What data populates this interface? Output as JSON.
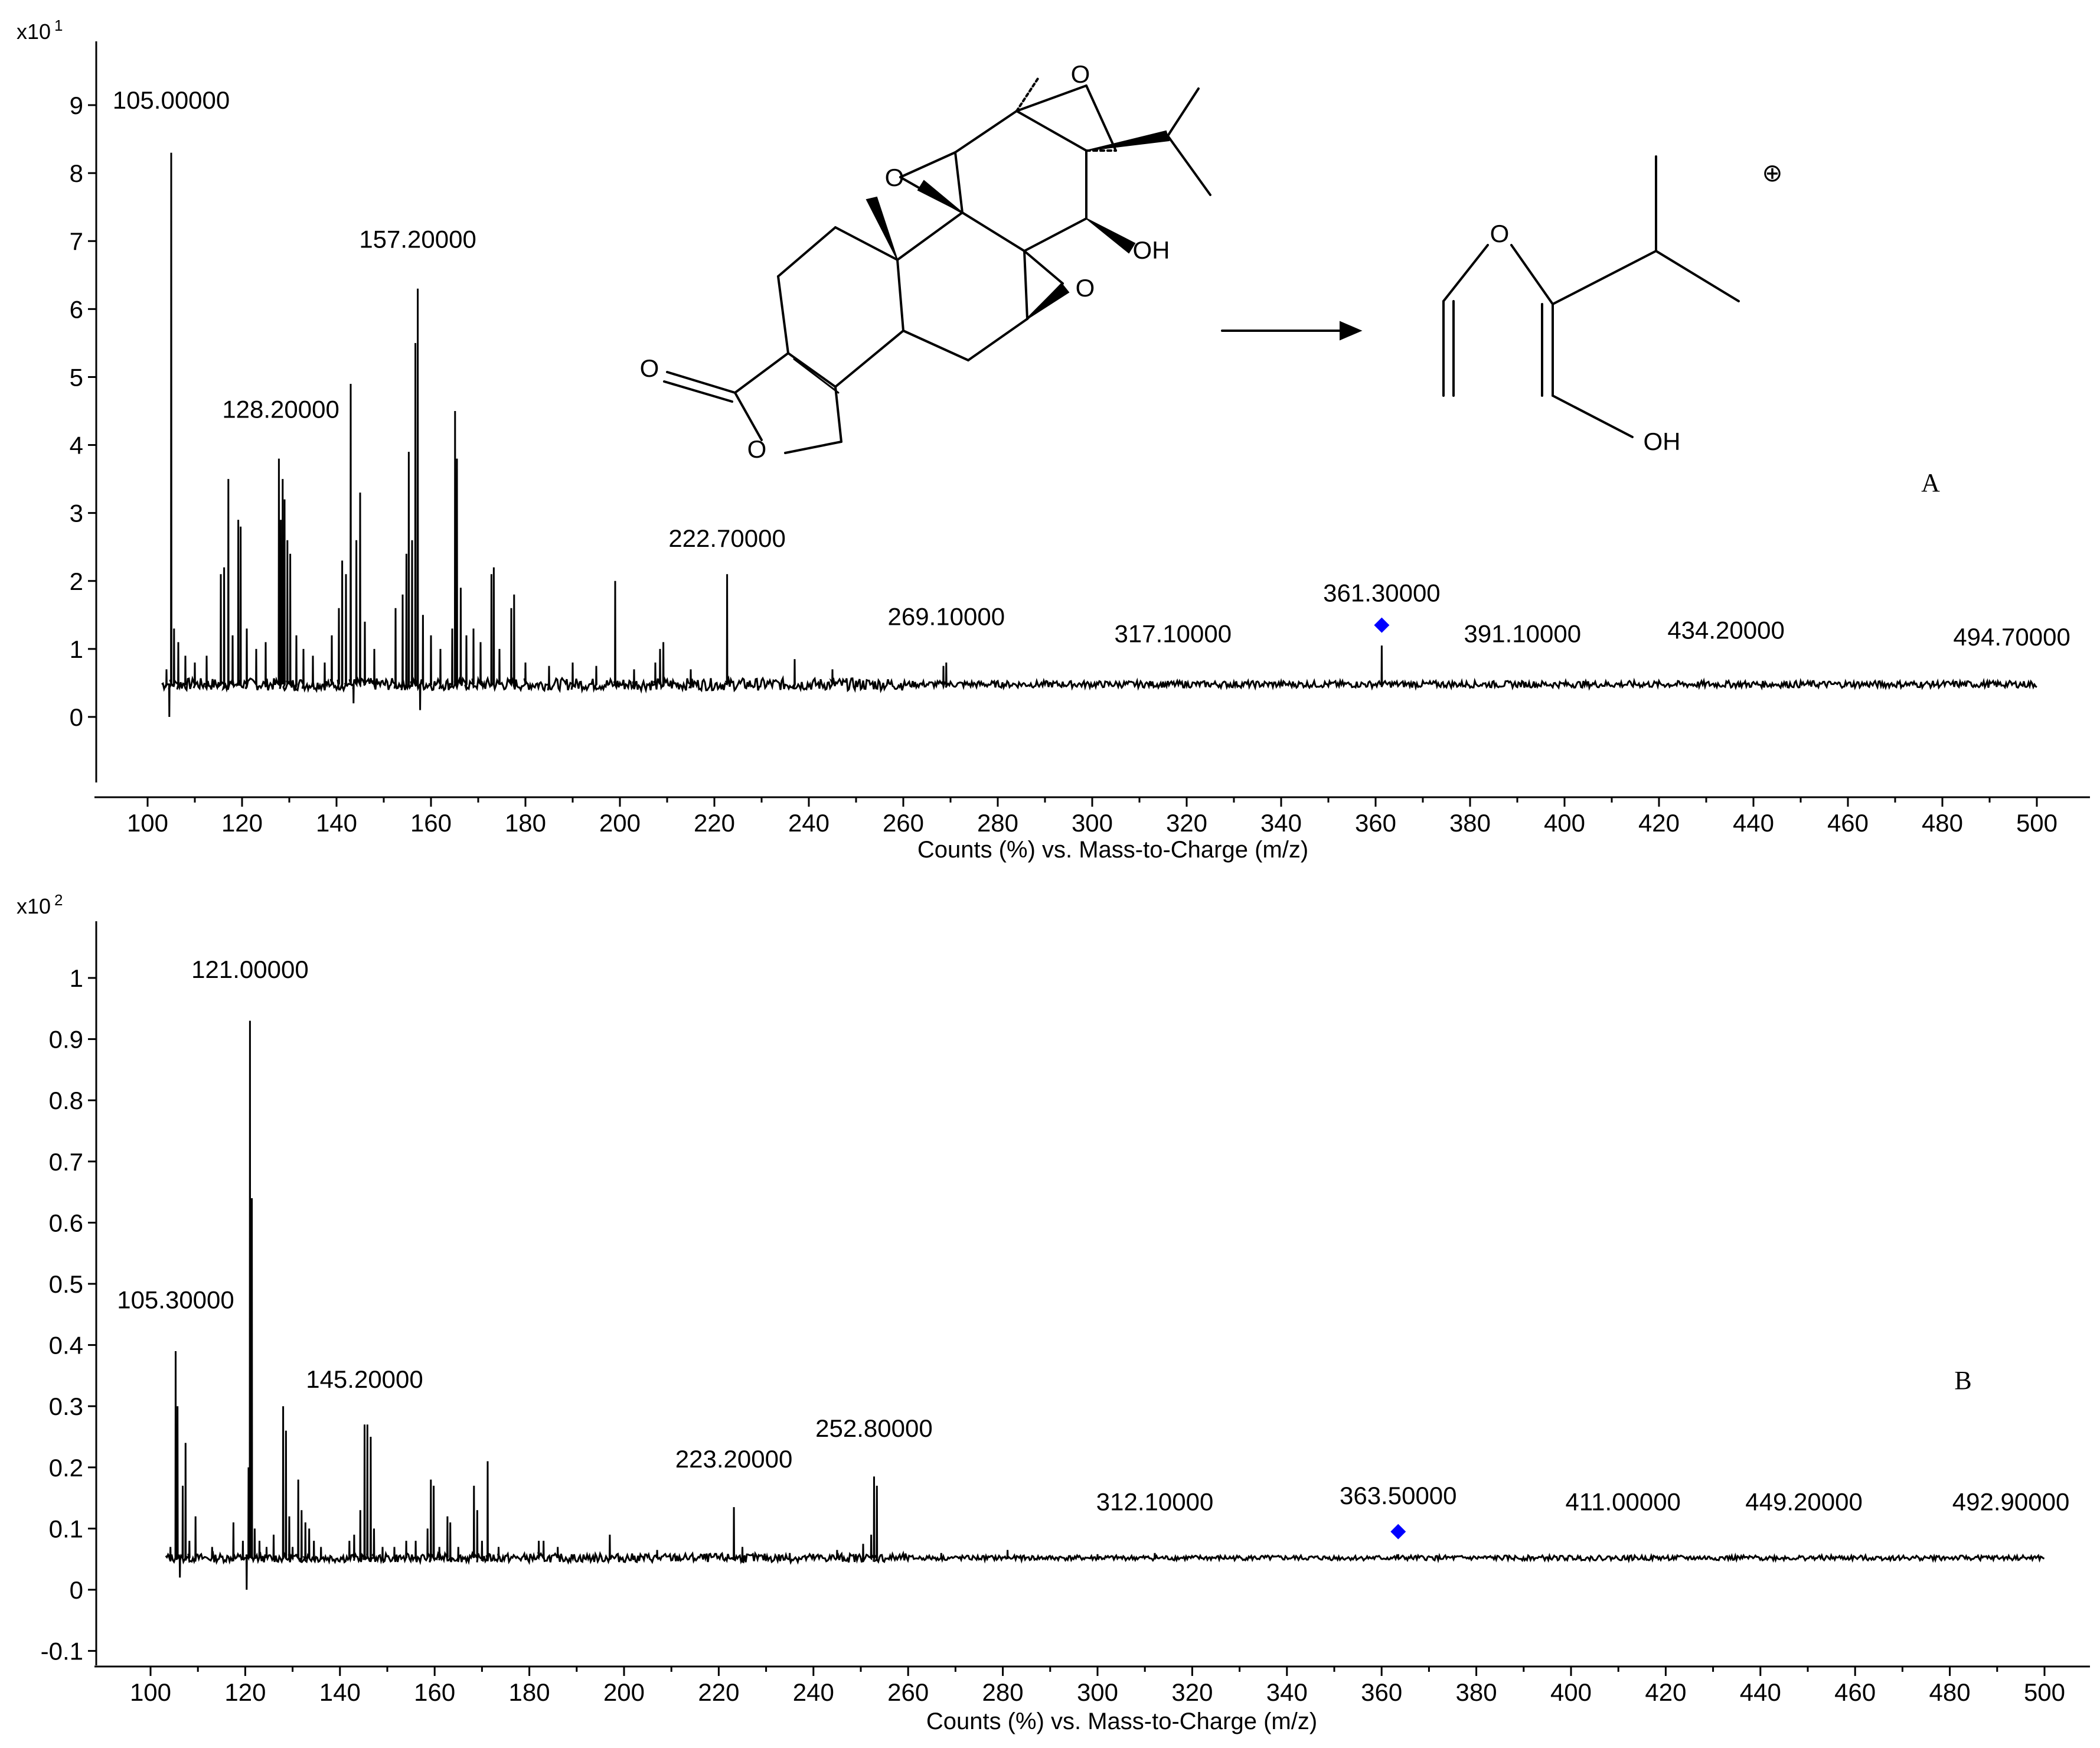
{
  "chart_data": [
    {
      "type": "line",
      "panel_label": "A",
      "y_multiplier": "x10",
      "y_multiplier_exponent": "1",
      "xlabel": "Counts (%) vs. Mass-to-Charge (m/z)",
      "xlim": [
        100,
        500
      ],
      "ylim": [
        -1,
        9.8
      ],
      "x_ticks": [
        "100",
        "120",
        "140",
        "160",
        "180",
        "200",
        "220",
        "240",
        "260",
        "280",
        "300",
        "320",
        "340",
        "360",
        "380",
        "400",
        "420",
        "440",
        "460",
        "480",
        "500"
      ],
      "y_ticks": [
        "0",
        "1",
        "2",
        "3",
        "4",
        "5",
        "6",
        "7",
        "8",
        "9"
      ],
      "baseline": 0.48,
      "noise_amplitude": 0.05,
      "peaks": [
        {
          "mz": 104.0,
          "intensity": 0.7
        },
        {
          "mz": 104.6,
          "intensity": 0.0
        },
        {
          "mz": 105.0,
          "intensity": 8.3
        },
        {
          "mz": 105.6,
          "intensity": 1.3
        },
        {
          "mz": 106.5,
          "intensity": 1.1
        },
        {
          "mz": 108.0,
          "intensity": 0.9
        },
        {
          "mz": 110.0,
          "intensity": 0.8
        },
        {
          "mz": 112.5,
          "intensity": 0.9
        },
        {
          "mz": 115.5,
          "intensity": 2.1
        },
        {
          "mz": 116.2,
          "intensity": 2.2
        },
        {
          "mz": 117.1,
          "intensity": 3.5
        },
        {
          "mz": 118.0,
          "intensity": 1.2
        },
        {
          "mz": 119.2,
          "intensity": 2.9
        },
        {
          "mz": 119.7,
          "intensity": 2.8
        },
        {
          "mz": 121.0,
          "intensity": 1.3
        },
        {
          "mz": 123.0,
          "intensity": 1.0
        },
        {
          "mz": 125.0,
          "intensity": 1.1
        },
        {
          "mz": 127.8,
          "intensity": 3.8
        },
        {
          "mz": 128.2,
          "intensity": 2.9
        },
        {
          "mz": 128.6,
          "intensity": 3.5
        },
        {
          "mz": 129.0,
          "intensity": 3.2
        },
        {
          "mz": 129.6,
          "intensity": 2.6
        },
        {
          "mz": 130.2,
          "intensity": 2.4
        },
        {
          "mz": 131.5,
          "intensity": 1.2
        },
        {
          "mz": 133.0,
          "intensity": 1.0
        },
        {
          "mz": 135.0,
          "intensity": 0.9
        },
        {
          "mz": 137.5,
          "intensity": 0.8
        },
        {
          "mz": 139.0,
          "intensity": 1.2
        },
        {
          "mz": 140.5,
          "intensity": 1.6
        },
        {
          "mz": 141.2,
          "intensity": 2.3
        },
        {
          "mz": 142.0,
          "intensity": 2.1
        },
        {
          "mz": 143.0,
          "intensity": 4.9
        },
        {
          "mz": 143.6,
          "intensity": 0.2
        },
        {
          "mz": 144.2,
          "intensity": 2.6
        },
        {
          "mz": 145.0,
          "intensity": 3.3
        },
        {
          "mz": 146.0,
          "intensity": 1.4
        },
        {
          "mz": 148.0,
          "intensity": 1.0
        },
        {
          "mz": 152.5,
          "intensity": 1.6
        },
        {
          "mz": 154.0,
          "intensity": 1.8
        },
        {
          "mz": 154.8,
          "intensity": 2.4
        },
        {
          "mz": 155.3,
          "intensity": 3.9
        },
        {
          "mz": 156.0,
          "intensity": 2.6
        },
        {
          "mz": 156.7,
          "intensity": 5.5
        },
        {
          "mz": 157.2,
          "intensity": 6.3
        },
        {
          "mz": 157.7,
          "intensity": 0.1
        },
        {
          "mz": 158.3,
          "intensity": 1.5
        },
        {
          "mz": 160.0,
          "intensity": 1.2
        },
        {
          "mz": 162.0,
          "intensity": 1.0
        },
        {
          "mz": 164.5,
          "intensity": 1.3
        },
        {
          "mz": 165.1,
          "intensity": 4.5
        },
        {
          "mz": 165.5,
          "intensity": 3.8
        },
        {
          "mz": 166.3,
          "intensity": 1.9
        },
        {
          "mz": 167.5,
          "intensity": 1.2
        },
        {
          "mz": 169.0,
          "intensity": 1.3
        },
        {
          "mz": 170.5,
          "intensity": 1.1
        },
        {
          "mz": 172.8,
          "intensity": 2.1
        },
        {
          "mz": 173.3,
          "intensity": 2.2
        },
        {
          "mz": 174.5,
          "intensity": 1.0
        },
        {
          "mz": 177.0,
          "intensity": 1.6
        },
        {
          "mz": 177.6,
          "intensity": 1.8
        },
        {
          "mz": 180.0,
          "intensity": 0.8
        },
        {
          "mz": 185.0,
          "intensity": 0.75
        },
        {
          "mz": 190.0,
          "intensity": 0.8
        },
        {
          "mz": 195.0,
          "intensity": 0.75
        },
        {
          "mz": 199.0,
          "intensity": 2.0
        },
        {
          "mz": 203.0,
          "intensity": 0.7
        },
        {
          "mz": 207.5,
          "intensity": 0.8
        },
        {
          "mz": 208.5,
          "intensity": 1.0
        },
        {
          "mz": 209.2,
          "intensity": 1.1
        },
        {
          "mz": 215.0,
          "intensity": 0.7
        },
        {
          "mz": 222.7,
          "intensity": 2.1
        },
        {
          "mz": 237.0,
          "intensity": 0.85
        },
        {
          "mz": 245.0,
          "intensity": 0.7
        },
        {
          "mz": 268.5,
          "intensity": 0.75
        },
        {
          "mz": 269.1,
          "intensity": 0.8
        },
        {
          "mz": 361.3,
          "intensity": 1.05
        }
      ],
      "peak_labels": [
        {
          "mz": 105.0,
          "text": "105.00000",
          "intensity": 8.95
        },
        {
          "mz": 128.2,
          "text": "128.20000",
          "intensity": 4.4
        },
        {
          "mz": 157.2,
          "text": "157.20000",
          "intensity": 6.9
        },
        {
          "mz": 222.7,
          "text": "222.70000",
          "intensity": 2.5
        },
        {
          "mz": 269.1,
          "text": "269.10000",
          "intensity": 1.35
        },
        {
          "mz": 317.1,
          "text": "317.10000",
          "intensity": 1.1
        },
        {
          "mz": 361.3,
          "text": "361.30000",
          "intensity": 1.7
        },
        {
          "mz": 391.1,
          "text": "391.10000",
          "intensity": 1.1
        },
        {
          "mz": 434.2,
          "text": "434.20000",
          "intensity": 1.15
        },
        {
          "mz": 494.7,
          "text": "494.70000",
          "intensity": 1.05
        }
      ],
      "precursor_marker": {
        "mz": 361.3,
        "intensity": 1.35,
        "color": "#0000ff"
      },
      "line_color": "#000000"
    },
    {
      "type": "line",
      "panel_label": "B",
      "y_multiplier": "x10",
      "y_multiplier_exponent": "2",
      "xlabel": "Counts (%) vs. Mass-to-Charge (m/z)",
      "xlim": [
        100,
        500
      ],
      "ylim": [
        -0.13,
        1.09
      ],
      "x_ticks": [
        "100",
        "120",
        "140",
        "160",
        "180",
        "200",
        "220",
        "240",
        "260",
        "280",
        "300",
        "320",
        "340",
        "360",
        "380",
        "400",
        "420",
        "440",
        "460",
        "480",
        "500"
      ],
      "y_ticks": [
        "-0.1",
        "0",
        "0.1",
        "0.2",
        "0.3",
        "0.4",
        "0.5",
        "0.6",
        "0.7",
        "0.8",
        "0.9",
        "1"
      ],
      "baseline": 0.052,
      "noise_amplitude": 0.004,
      "peaks": [
        {
          "mz": 104.2,
          "intensity": 0.07
        },
        {
          "mz": 105.3,
          "intensity": 0.39
        },
        {
          "mz": 105.7,
          "intensity": 0.3
        },
        {
          "mz": 106.2,
          "intensity": 0.02
        },
        {
          "mz": 106.8,
          "intensity": 0.17
        },
        {
          "mz": 107.4,
          "intensity": 0.24
        },
        {
          "mz": 108.2,
          "intensity": 0.08
        },
        {
          "mz": 109.5,
          "intensity": 0.12
        },
        {
          "mz": 113.0,
          "intensity": 0.07
        },
        {
          "mz": 117.5,
          "intensity": 0.11
        },
        {
          "mz": 119.5,
          "intensity": 0.08
        },
        {
          "mz": 120.3,
          "intensity": 0.0
        },
        {
          "mz": 120.7,
          "intensity": 0.2
        },
        {
          "mz": 121.0,
          "intensity": 0.93
        },
        {
          "mz": 121.4,
          "intensity": 0.64
        },
        {
          "mz": 122.0,
          "intensity": 0.1
        },
        {
          "mz": 123.0,
          "intensity": 0.08
        },
        {
          "mz": 124.5,
          "intensity": 0.07
        },
        {
          "mz": 126.0,
          "intensity": 0.09
        },
        {
          "mz": 128.0,
          "intensity": 0.3
        },
        {
          "mz": 128.6,
          "intensity": 0.26
        },
        {
          "mz": 129.3,
          "intensity": 0.12
        },
        {
          "mz": 130.0,
          "intensity": 0.07
        },
        {
          "mz": 131.2,
          "intensity": 0.18
        },
        {
          "mz": 131.9,
          "intensity": 0.13
        },
        {
          "mz": 132.7,
          "intensity": 0.11
        },
        {
          "mz": 133.5,
          "intensity": 0.1
        },
        {
          "mz": 134.5,
          "intensity": 0.08
        },
        {
          "mz": 136.0,
          "intensity": 0.07
        },
        {
          "mz": 142.0,
          "intensity": 0.08
        },
        {
          "mz": 143.0,
          "intensity": 0.09
        },
        {
          "mz": 144.3,
          "intensity": 0.13
        },
        {
          "mz": 145.2,
          "intensity": 0.27
        },
        {
          "mz": 145.8,
          "intensity": 0.27
        },
        {
          "mz": 146.5,
          "intensity": 0.25
        },
        {
          "mz": 147.2,
          "intensity": 0.1
        },
        {
          "mz": 149.0,
          "intensity": 0.07
        },
        {
          "mz": 151.5,
          "intensity": 0.07
        },
        {
          "mz": 154.0,
          "intensity": 0.08
        },
        {
          "mz": 156.0,
          "intensity": 0.08
        },
        {
          "mz": 158.5,
          "intensity": 0.1
        },
        {
          "mz": 159.2,
          "intensity": 0.18
        },
        {
          "mz": 159.8,
          "intensity": 0.17
        },
        {
          "mz": 161.0,
          "intensity": 0.07
        },
        {
          "mz": 162.7,
          "intensity": 0.12
        },
        {
          "mz": 163.3,
          "intensity": 0.11
        },
        {
          "mz": 165.0,
          "intensity": 0.07
        },
        {
          "mz": 168.3,
          "intensity": 0.17
        },
        {
          "mz": 169.0,
          "intensity": 0.13
        },
        {
          "mz": 170.0,
          "intensity": 0.08
        },
        {
          "mz": 171.2,
          "intensity": 0.21
        },
        {
          "mz": 173.5,
          "intensity": 0.07
        },
        {
          "mz": 182.0,
          "intensity": 0.08
        },
        {
          "mz": 183.0,
          "intensity": 0.08
        },
        {
          "mz": 186.0,
          "intensity": 0.07
        },
        {
          "mz": 197.0,
          "intensity": 0.09
        },
        {
          "mz": 207.0,
          "intensity": 0.065
        },
        {
          "mz": 223.2,
          "intensity": 0.135
        },
        {
          "mz": 225.0,
          "intensity": 0.07
        },
        {
          "mz": 235.0,
          "intensity": 0.06
        },
        {
          "mz": 245.0,
          "intensity": 0.065
        },
        {
          "mz": 250.5,
          "intensity": 0.075
        },
        {
          "mz": 252.2,
          "intensity": 0.09
        },
        {
          "mz": 252.8,
          "intensity": 0.185
        },
        {
          "mz": 253.4,
          "intensity": 0.17
        },
        {
          "mz": 267.0,
          "intensity": 0.06
        },
        {
          "mz": 281.0,
          "intensity": 0.065
        },
        {
          "mz": 300.0,
          "intensity": 0.058
        },
        {
          "mz": 312.1,
          "intensity": 0.06
        },
        {
          "mz": 363.5,
          "intensity": 0.058
        }
      ],
      "peak_labels": [
        {
          "mz": 121.0,
          "text": "121.00000",
          "intensity": 1.0
        },
        {
          "mz": 105.3,
          "text": "105.30000",
          "intensity": 0.46
        },
        {
          "mz": 145.2,
          "text": "145.20000",
          "intensity": 0.33
        },
        {
          "mz": 223.2,
          "text": "223.20000",
          "intensity": 0.2
        },
        {
          "mz": 252.8,
          "text": "252.80000",
          "intensity": 0.25
        },
        {
          "mz": 312.1,
          "text": "312.10000",
          "intensity": 0.13
        },
        {
          "mz": 363.5,
          "text": "363.50000",
          "intensity": 0.14
        },
        {
          "mz": 411.0,
          "text": "411.00000",
          "intensity": 0.13
        },
        {
          "mz": 449.2,
          "text": "449.20000",
          "intensity": 0.13
        },
        {
          "mz": 492.9,
          "text": "492.90000",
          "intensity": 0.13
        }
      ],
      "precursor_marker": {
        "mz": 363.5,
        "intensity": 0.095,
        "color": "#0000ff"
      },
      "line_color": "#000000"
    }
  ],
  "structure_inset": {
    "atom_labels": [
      "O",
      "O",
      "OH",
      "O",
      "O",
      "O"
    ],
    "fragment_atom_labels": [
      "O",
      "OH"
    ],
    "charge_symbol": "⊕",
    "reaction_arrow": "→"
  }
}
